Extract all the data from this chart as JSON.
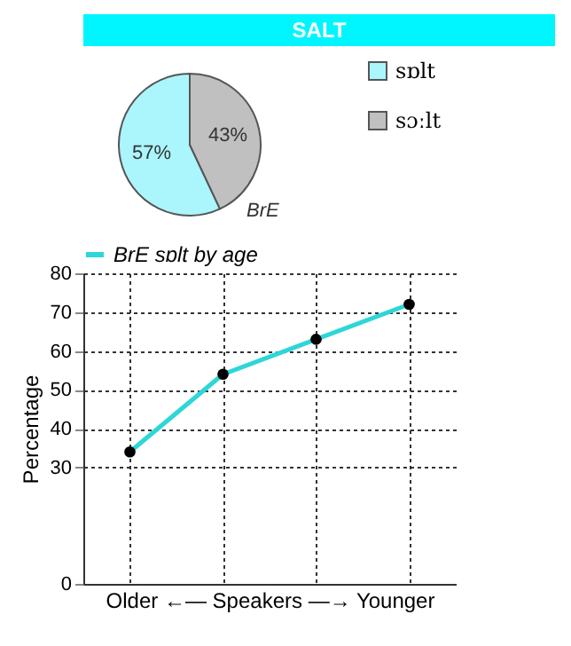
{
  "chart_data": [
    {
      "type": "pie",
      "title": "SALT",
      "categories": [
        "sɒlt",
        "sɔːlt"
      ],
      "values": [
        57,
        43
      ],
      "colors": [
        "#aaf6fc",
        "#c0c0c0"
      ],
      "value_labels": [
        "57%",
        "43%"
      ],
      "annotations": [
        "BrE"
      ],
      "legend": "right"
    },
    {
      "type": "line",
      "categories": [
        null,
        null,
        null,
        null
      ],
      "series": [
        {
          "name": "BrE sɒlt by age",
          "color": "#2ed6d8",
          "values": [
            34,
            54,
            63,
            72
          ]
        }
      ],
      "xlabel": "Older ←— Speakers —→ Younger",
      "ylabel": "Percentage",
      "ylim": [
        0,
        80
      ],
      "yticks": [
        0,
        30,
        40,
        50,
        60,
        70,
        80
      ],
      "grid": true,
      "legend": "top left",
      "marker": "circle",
      "tick_labels": "y"
    }
  ]
}
